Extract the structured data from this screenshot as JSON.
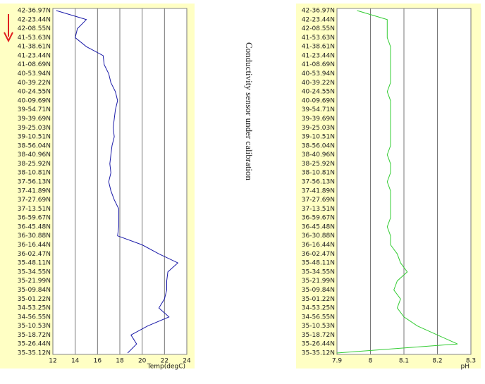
{
  "chart_data": [
    {
      "type": "line",
      "color": "#1a1aa8",
      "xlabel": "Temp(degC)",
      "xlim": [
        12,
        24
      ],
      "xticks": [
        12,
        14,
        16,
        18,
        20,
        22,
        24
      ],
      "grid": true,
      "categories": [
        "42-36.97N",
        "42-23.44N",
        "42-08.55N",
        "41-53.63N",
        "41-38.61N",
        "41-23.44N",
        "41-08.69N",
        "40-53.94N",
        "40-39.22N",
        "40-24.55N",
        "40-09.69N",
        "39-54.71N",
        "39-39.69N",
        "39-25.03N",
        "39-10.51N",
        "38-56.04N",
        "38-40.96N",
        "38-25.92N",
        "38-10.81N",
        "37-56.13N",
        "37-41.89N",
        "37-27.69N",
        "37-13.51N",
        "36-59.67N",
        "36-45.48N",
        "36-30.88N",
        "36-16.44N",
        "36-02.47N",
        "35-48.11N",
        "35-34.55N",
        "35-21.99N",
        "35-09.84N",
        "35-01.22N",
        "34-53.25N",
        "34-56.55N",
        "35-10.53N",
        "35-18.72N",
        "35-26.44N",
        "35-35.12N"
      ],
      "values": [
        12.3,
        15.0,
        14.2,
        14.0,
        15.0,
        16.5,
        16.6,
        17.0,
        17.2,
        17.6,
        17.8,
        17.6,
        17.5,
        17.4,
        17.5,
        17.3,
        17.2,
        17.1,
        17.2,
        17.0,
        17.2,
        17.5,
        17.9,
        17.9,
        17.9,
        17.8,
        20.0,
        21.5,
        23.2,
        22.3,
        22.2,
        22.2,
        22.0,
        21.5,
        22.4,
        20.5,
        19.0,
        19.5,
        18.7
      ]
    },
    {
      "type": "line",
      "color": "#33cc33",
      "xlabel": "pH",
      "xlim": [
        7.9,
        8.3
      ],
      "xticks": [
        7.9,
        8,
        8.1,
        8.2,
        8.3
      ],
      "grid": true,
      "categories": [
        "42-36.97N",
        "42-23.44N",
        "42-08.55N",
        "41-53.63N",
        "41-38.61N",
        "41-23.44N",
        "41-08.69N",
        "40-53.94N",
        "40-39.22N",
        "40-24.55N",
        "40-09.69N",
        "39-54.71N",
        "39-39.69N",
        "39-25.03N",
        "39-10.51N",
        "38-56.04N",
        "38-40.96N",
        "38-25.92N",
        "38-10.81N",
        "37-56.13N",
        "37-41.89N",
        "37-27.69N",
        "37-13.51N",
        "36-59.67N",
        "36-45.48N",
        "36-30.88N",
        "36-16.44N",
        "36-02.47N",
        "35-48.11N",
        "35-34.55N",
        "35-21.99N",
        "35-09.84N",
        "35-01.22N",
        "34-53.25N",
        "34-56.55N",
        "35-10.53N",
        "35-18.72N",
        "35-26.44N",
        "35-35.12N"
      ],
      "values": [
        7.96,
        8.05,
        8.05,
        8.05,
        8.06,
        8.06,
        8.06,
        8.06,
        8.06,
        8.05,
        8.06,
        8.06,
        8.06,
        8.06,
        8.06,
        8.06,
        8.05,
        8.06,
        8.06,
        8.05,
        8.06,
        8.06,
        8.06,
        8.06,
        8.05,
        8.06,
        8.06,
        8.08,
        8.09,
        8.11,
        8.08,
        8.07,
        8.09,
        8.08,
        8.1,
        8.14,
        8.2,
        8.26,
        7.9
      ]
    }
  ],
  "annotation": "Conductivity sensor under calibration"
}
